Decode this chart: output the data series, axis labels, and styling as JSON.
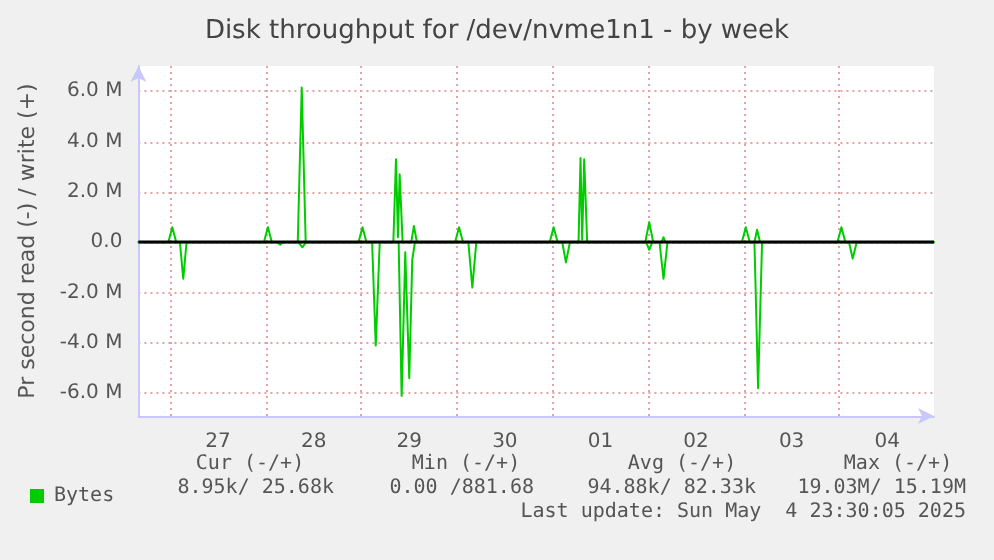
{
  "chart_data": {
    "type": "line",
    "title": "Disk throughput for /dev/nvme1n1 - by week",
    "ylabel": "Pr second read (-) / write (+)",
    "xlim": [
      "2025-04-26T16:00",
      "2025-05-04T23:45"
    ],
    "xticks": [
      {
        "value": "2025-04-27T00:00",
        "label": null
      },
      {
        "value": "2025-04-27T12:00",
        "label": "27"
      },
      {
        "value": "2025-04-28T00:00",
        "label": null
      },
      {
        "value": "2025-04-28T12:00",
        "label": "28"
      },
      {
        "value": "2025-04-29T00:00",
        "label": null
      },
      {
        "value": "2025-04-29T12:00",
        "label": "29"
      },
      {
        "value": "2025-04-30T00:00",
        "label": null
      },
      {
        "value": "2025-04-30T12:00",
        "label": "30"
      },
      {
        "value": "2025-05-01T00:00",
        "label": null
      },
      {
        "value": "2025-05-01T12:00",
        "label": "01"
      },
      {
        "value": "2025-05-02T00:00",
        "label": null
      },
      {
        "value": "2025-05-02T12:00",
        "label": "02"
      },
      {
        "value": "2025-05-03T00:00",
        "label": null
      },
      {
        "value": "2025-05-03T12:00",
        "label": "03"
      },
      {
        "value": "2025-05-04T00:00",
        "label": null
      },
      {
        "value": "2025-05-04T12:00",
        "label": "04"
      }
    ],
    "ylim": [
      -6.9,
      7.0
    ],
    "yticks": [
      {
        "value": -6,
        "label": "-6.0 M"
      },
      {
        "value": -4,
        "label": "-4.0 M"
      },
      {
        "value": -2,
        "label": "-2.0 M"
      },
      {
        "value": 0,
        "label": "0.0"
      },
      {
        "value": 2,
        "label": "2.0 M"
      },
      {
        "value": 4,
        "label": "4.0 M"
      },
      {
        "value": 6,
        "label": "6.0 M"
      }
    ],
    "grid": true,
    "legend": "bottom left",
    "marker": "none",
    "line_style": "solid",
    "ref_lines": [
      {
        "axis": "y",
        "value": 0,
        "label": null,
        "color": "#000000"
      }
    ],
    "series": [
      {
        "name": "Bytes",
        "color": "#00cc00",
        "x": [
          "2025-04-26T16:00",
          "2025-04-26T23:30",
          "2025-04-27T00:30",
          "2025-04-27T01:30",
          "2025-04-27T23:30",
          "2025-04-28T00:30",
          "2025-04-28T01:30",
          "2025-04-28T08:00",
          "2025-04-28T09:00",
          "2025-04-28T10:00",
          "2025-04-28T23:15",
          "2025-04-29T00:15",
          "2025-04-29T01:15",
          "2025-04-29T08:00",
          "2025-04-29T08:40",
          "2025-04-29T09:10",
          "2025-04-29T09:35",
          "2025-04-29T10:20",
          "2025-04-29T12:30",
          "2025-04-29T13:10",
          "2025-04-29T13:55",
          "2025-04-29T23:30",
          "2025-04-30T00:30",
          "2025-04-30T01:30",
          "2025-04-30T23:15",
          "2025-05-01T00:15",
          "2025-05-01T01:15",
          "2025-05-01T06:30",
          "2025-05-01T07:00",
          "2025-05-01T07:25",
          "2025-05-01T07:55",
          "2025-05-01T08:40",
          "2025-05-01T23:15",
          "2025-05-02T00:15",
          "2025-05-02T01:15",
          "2025-05-02T03:20",
          "2025-05-02T03:50",
          "2025-05-02T04:20",
          "2025-05-02T23:30",
          "2025-05-03T00:30",
          "2025-05-03T01:30",
          "2025-05-03T02:40",
          "2025-05-03T03:20",
          "2025-05-03T04:05",
          "2025-05-03T23:30",
          "2025-05-04T00:30",
          "2025-05-04T01:30",
          "2025-05-04T23:45"
        ],
        "values": [
          0,
          0,
          0.6,
          0,
          0,
          0.6,
          0,
          0,
          6.15,
          0,
          0,
          0.6,
          0,
          0,
          3.3,
          0.2,
          2.7,
          0,
          0,
          0.65,
          0,
          0,
          0.6,
          0,
          0,
          0.6,
          0,
          0,
          3.35,
          0.1,
          3.3,
          0,
          0,
          0.8,
          0,
          0,
          0.2,
          0,
          0,
          0.6,
          0,
          0,
          0.5,
          0,
          0,
          0.6,
          0,
          0
        ]
      },
      {
        "color": "#00cc00",
        "x": [
          "2025-04-26T16:00",
          "2025-04-27T02:25",
          "2025-04-27T03:15",
          "2025-04-27T04:05",
          "2025-04-28T02:50",
          "2025-04-28T03:35",
          "2025-04-28T04:20",
          "2025-04-28T08:10",
          "2025-04-28T09:10",
          "2025-04-28T10:05",
          "2025-04-29T02:40",
          "2025-04-29T03:35",
          "2025-04-29T04:35",
          "2025-04-29T09:20",
          "2025-04-29T10:05",
          "2025-04-29T11:00",
          "2025-04-29T12:00",
          "2025-04-29T12:45",
          "2025-04-29T13:25",
          "2025-04-30T02:50",
          "2025-04-30T03:50",
          "2025-04-30T04:50",
          "2025-05-01T02:25",
          "2025-05-01T03:20",
          "2025-05-01T04:20",
          "2025-05-01T23:30",
          "2025-05-02T00:15",
          "2025-05-02T01:00",
          "2025-05-02T02:50",
          "2025-05-02T03:50",
          "2025-05-02T04:50",
          "2025-05-03T02:40",
          "2025-05-03T03:35",
          "2025-05-03T04:35",
          "2025-05-04T02:25",
          "2025-05-04T03:20",
          "2025-05-04T04:20",
          "2025-05-04T23:45"
        ],
        "values": [
          0,
          0,
          -1.45,
          0,
          0,
          -0.1,
          0,
          0,
          -0.2,
          0,
          0,
          -4.1,
          0,
          0,
          -6.1,
          -0.4,
          -5.4,
          -0.7,
          0,
          0,
          -1.8,
          0,
          0,
          -0.8,
          0,
          0,
          -0.3,
          0,
          0,
          -1.45,
          0,
          0,
          -5.8,
          0,
          0,
          -0.65,
          0,
          0
        ]
      }
    ],
    "annotations": [
      "Cur (-/+)",
      "Min (-/+)",
      "Avg (-/+)",
      "Max (-/+)",
      "8.95k/ 25.68k",
      "0.00 /881.68",
      "94.88k/ 82.33k",
      "19.03M/ 15.19M",
      "Last update: Sun May  4 23:30:05 2025"
    ]
  }
}
